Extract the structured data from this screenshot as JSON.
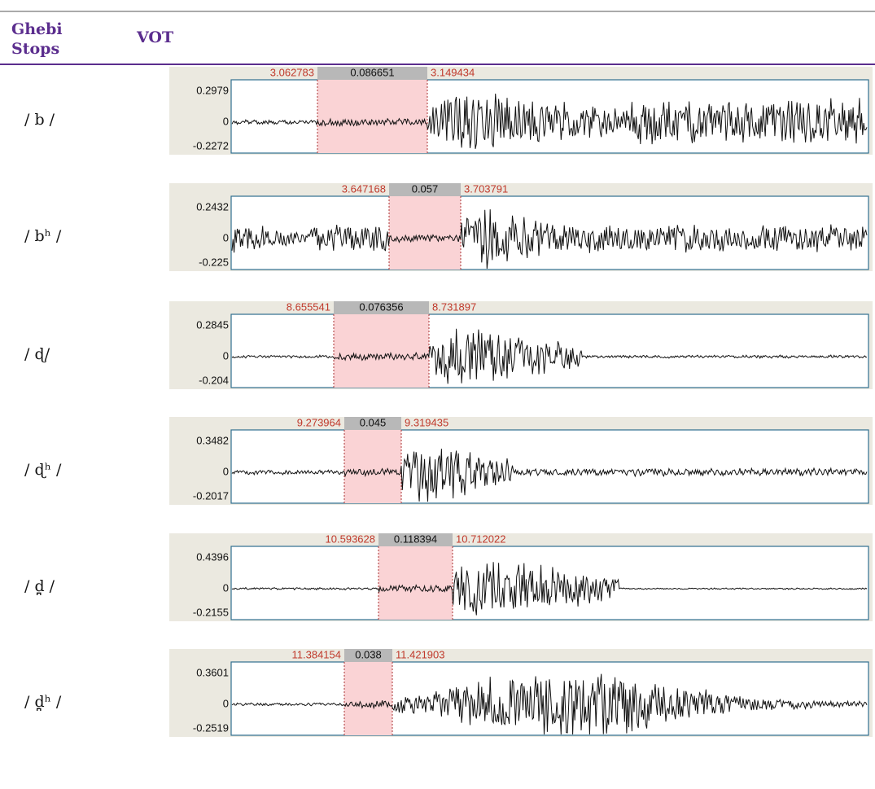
{
  "header": {
    "col1": "Ghebi Stops",
    "col2": "VOT"
  },
  "rows": [
    {
      "stop": "/ b /",
      "start": 3.062783,
      "duration": 0.086651,
      "end": 3.149434,
      "ymax": 0.2979,
      "yzero": 0,
      "ymin": -0.2272
    },
    {
      "stop": "/ bʰ /",
      "start": 3.647168,
      "duration": 0.057,
      "end": 3.703791,
      "ymax": 0.2432,
      "yzero": 0,
      "ymin": -0.225
    },
    {
      "stop": "/ ɖ/",
      "start": 8.655541,
      "duration": 0.076356,
      "end": 8.731897,
      "ymax": 0.2845,
      "yzero": 0,
      "ymin": -0.204
    },
    {
      "stop": "/ ɖʰ /",
      "start": 9.273964,
      "duration": 0.045,
      "end": 9.319435,
      "ymax": 0.3482,
      "yzero": 0,
      "ymin": -0.2017
    },
    {
      "stop": "/ d̪ /",
      "start": 10.593628,
      "duration": 0.118394,
      "end": 10.712022,
      "ymax": 0.4396,
      "yzero": 0,
      "ymin": -0.2155
    },
    {
      "stop": "/ d̪ʰ /",
      "start": 11.384154,
      "duration": 0.038,
      "end": 11.421903,
      "ymax": 0.3601,
      "yzero": 0,
      "ymin": -0.2519
    }
  ]
}
